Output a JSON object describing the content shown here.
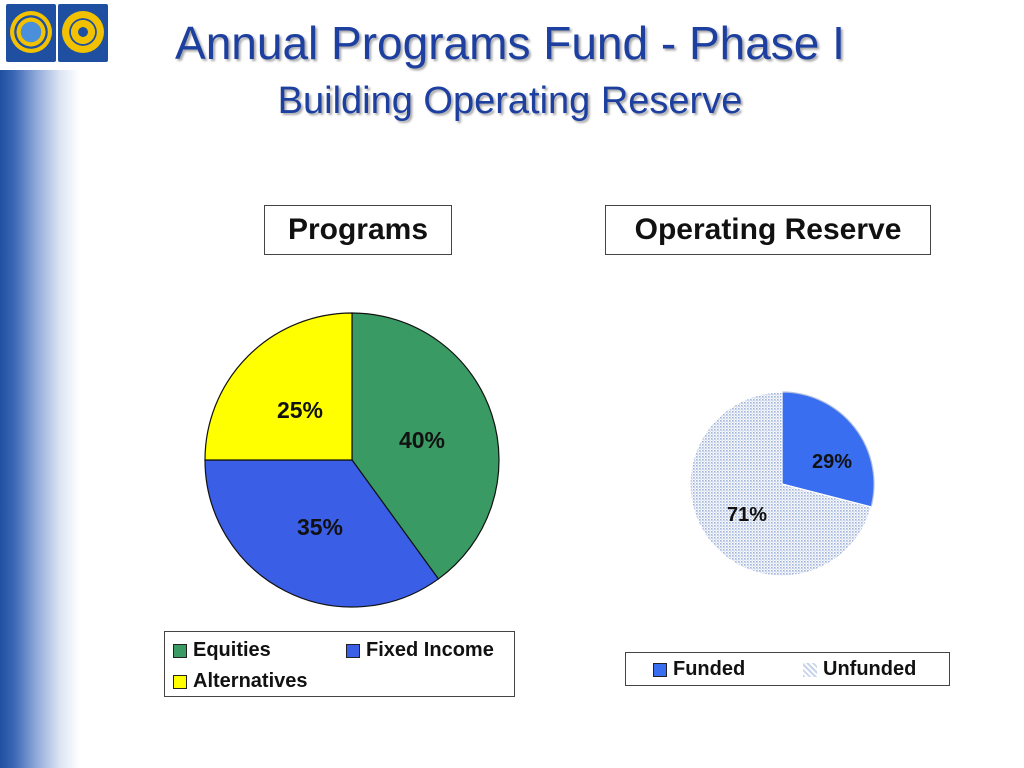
{
  "slide": {
    "title_line1": "Annual Programs Fund - Phase I",
    "title_line2": "Building Operating Reserve",
    "logos": [
      "globe-logo",
      "rotary-wheel-logo"
    ]
  },
  "colors": {
    "title": "#1c3fa0",
    "equities": "#3a9a64",
    "fixed_income": "#3a5ee6",
    "alternatives": "#ffff00",
    "funded": "#3a6ef0",
    "unfunded": "#c8d4ea"
  },
  "chart_data": [
    {
      "type": "pie",
      "title": "Programs",
      "categories": [
        "Equities",
        "Fixed Income",
        "Alternatives"
      ],
      "values": [
        40,
        35,
        25
      ],
      "value_labels": [
        "40%",
        "35%",
        "25%"
      ],
      "legend": [
        "Equities",
        "Fixed Income",
        "Alternatives"
      ],
      "legend_position": "bottom"
    },
    {
      "type": "pie",
      "title": "Operating Reserve",
      "categories": [
        "Funded",
        "Unfunded"
      ],
      "values": [
        29,
        71
      ],
      "value_labels": [
        "29%",
        "71%"
      ],
      "legend": [
        "Funded",
        "Unfunded"
      ],
      "legend_position": "bottom"
    }
  ]
}
